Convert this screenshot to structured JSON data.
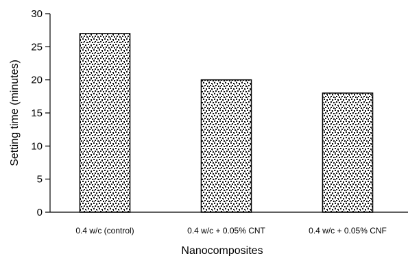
{
  "chart_data": {
    "type": "bar",
    "title": "",
    "xlabel": "Nanocomposites",
    "ylabel": "Setting time (minutes)",
    "categories": [
      "0.4 w/c (control)",
      "0.4 w/c + 0.05%  CNT",
      "0.4 w/c + 0.05%  CNF"
    ],
    "values": [
      27,
      20,
      18
    ],
    "ylim": [
      0,
      30
    ],
    "yticks": [
      "0",
      "5",
      "10",
      "15",
      "20",
      "25",
      "30"
    ],
    "grid": false,
    "legend": "none",
    "bar_fill": "speckled black-and-white pattern"
  }
}
